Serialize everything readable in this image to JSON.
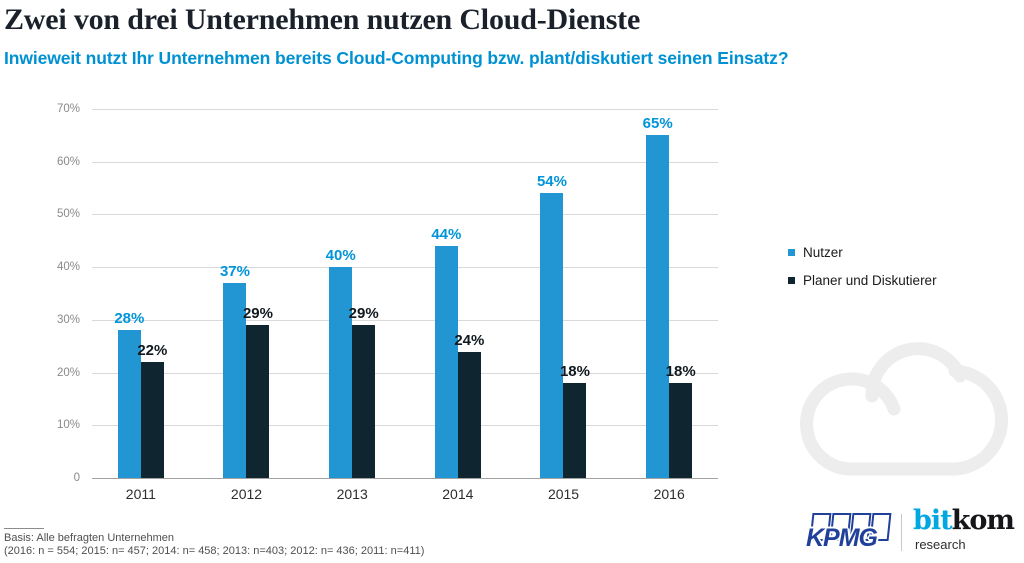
{
  "header": {
    "title": "Zwei von drei Unternehmen nutzen Cloud-Dienste",
    "subtitle": "Inwieweit nutzt Ihr Unternehmen bereits Cloud-Computing bzw. plant/diskutiert seinen Einsatz?"
  },
  "chart_data": {
    "type": "bar",
    "title": "Zwei von drei Unternehmen nutzen Cloud-Dienste",
    "subtitle": "Inwieweit nutzt Ihr Unternehmen bereits Cloud-Computing bzw. plant/diskutiert seinen Einsatz?",
    "categories": [
      "2011",
      "2012",
      "2013",
      "2014",
      "2015",
      "2016"
    ],
    "series": [
      {
        "name": "Nutzer",
        "color": "#2196d3",
        "label_color": "#0094d8",
        "values": [
          28,
          37,
          40,
          44,
          54,
          65
        ]
      },
      {
        "name": "Planer und Diskutierer",
        "color": "#0f2530",
        "label_color": "#10191e",
        "values": [
          22,
          29,
          29,
          24,
          18,
          18
        ]
      }
    ],
    "value_suffix": "%",
    "xlabel": "",
    "ylabel": "",
    "ylim": [
      0,
      70
    ],
    "y_ticks": [
      "70%",
      "60%",
      "50%",
      "40%",
      "30%",
      "20%",
      "10%",
      "0"
    ],
    "grid": true,
    "legend_position": "right"
  },
  "footer": {
    "line1": "Basis: Alle befragten Unternehmen",
    "line2": "(2016: n = 554; 2015: n= 457; 2014: n= 458; 2013: n=403; 2012: n= 436; 2011: n=411)"
  },
  "branding": {
    "kpmg_text": "KPMG",
    "bitkom_bit": "bit",
    "bitkom_kom": "kom",
    "bitkom_research": "research"
  },
  "colors": {
    "title": "#1a212b",
    "subtitle_blue": "#0091d3",
    "gridline": "#d9d9d9",
    "baseline": "#a3a3a3",
    "cloud_watermark": "#ededed",
    "kpmg_blue": "#21409a",
    "bitkom_blue": "#00a7e1"
  }
}
